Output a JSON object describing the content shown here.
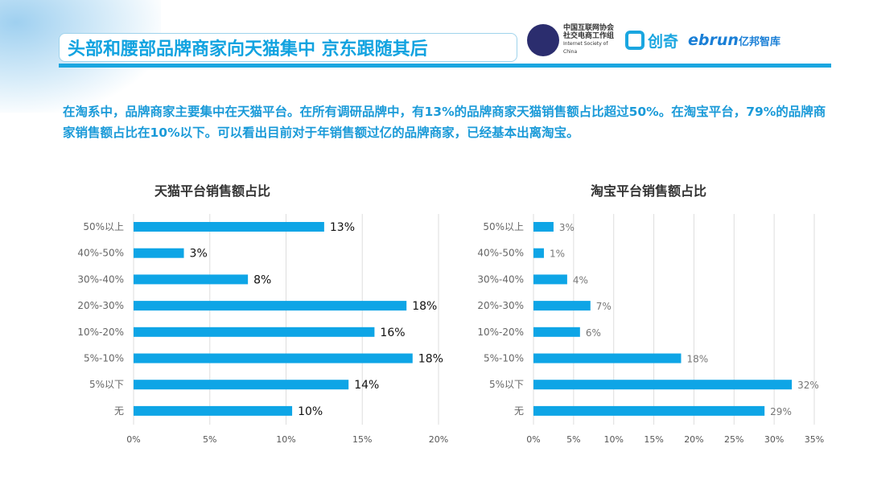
{
  "header": {
    "title": "头部和腰部品牌商家向天猫集中 京东跟随其后",
    "logos": {
      "isc_cn": "中国互联网协会 社交电商工作组",
      "isc_en": "Internet Society of China",
      "chuangqi": "创奇",
      "ebrun": "ebrun",
      "ebrun_cn": "亿邦智库"
    }
  },
  "description": "在淘系中，品牌商家主要集中在天猫平台。在所有调研品牌中，有13%的品牌商家天猫销售额占比超过50%。在淘宝平台，79%的品牌商家销售额占比在10%以下。可以看出目前对于年销售额过亿的品牌商家，已经基本出离淘宝。",
  "colors": {
    "bar": "#0ea5e6",
    "accent": "#12a3e0"
  },
  "chart_data": [
    {
      "type": "bar",
      "orientation": "horizontal",
      "title": "天猫平台销售额占比",
      "categories": [
        "50%以上",
        "40%-50%",
        "30%-40%",
        "20%-30%",
        "10%-20%",
        "5%-10%",
        "5%以下",
        "无"
      ],
      "values": [
        12.5,
        3.3,
        7.5,
        17.9,
        15.8,
        18.3,
        14.1,
        10.4
      ],
      "labels": [
        "13%",
        "3%",
        "8%",
        "18%",
        "16%",
        "18%",
        "14%",
        "10%"
      ],
      "xlim": [
        0,
        20
      ],
      "xticks": [
        "0%",
        "5%",
        "10%",
        "15%",
        "20%"
      ],
      "grid": true
    },
    {
      "type": "bar",
      "orientation": "horizontal",
      "title": "淘宝平台销售额占比",
      "categories": [
        "50%以上",
        "40%-50%",
        "30%-40%",
        "20%-30%",
        "10%-20%",
        "5%-10%",
        "5%以下",
        "无"
      ],
      "values": [
        2.5,
        1.3,
        4.2,
        7.1,
        5.8,
        18.4,
        32.2,
        28.8
      ],
      "labels": [
        "3%",
        "1%",
        "4%",
        "7%",
        "6%",
        "18%",
        "32%",
        "29%"
      ],
      "xlim": [
        0,
        35
      ],
      "xticks": [
        "0%",
        "5%",
        "10%",
        "15%",
        "20%",
        "25%",
        "30%",
        "35%"
      ],
      "grid": true
    }
  ]
}
